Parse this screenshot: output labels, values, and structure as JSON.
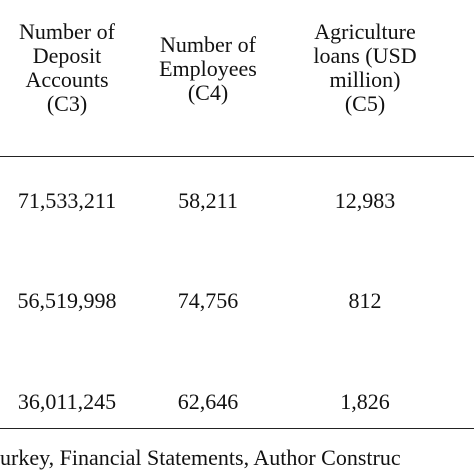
{
  "table": {
    "headers": [
      "Number of\nDeposit\nAccounts\n(C3)",
      "Number of\nEmployees\n(C4)",
      "Agriculture\nloans (USD\nmillion)\n(C5)"
    ],
    "rows": [
      [
        "71,533,211",
        "58,211",
        "12,983"
      ],
      [
        "56,519,998",
        "74,756",
        "812"
      ],
      [
        "36,011,245",
        "62,646",
        "1,826"
      ]
    ]
  },
  "source_note": "urkey, Financial Statements, Author Construc"
}
